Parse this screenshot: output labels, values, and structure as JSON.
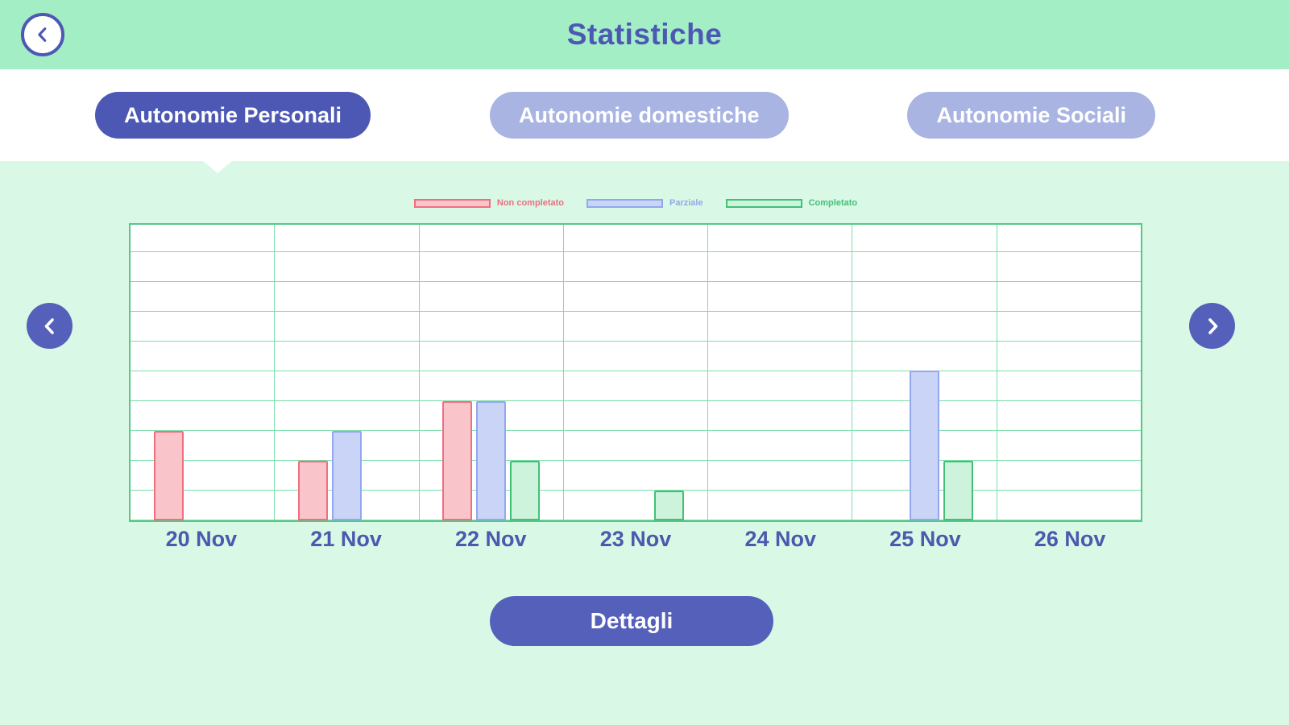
{
  "header": {
    "title": "Statistiche",
    "back_icon": "chevron-left-icon"
  },
  "tabs": [
    {
      "label": "Autonomie Personali",
      "active": true
    },
    {
      "label": "Autonomie domestiche",
      "active": false
    },
    {
      "label": "Autonomie Sociali",
      "active": false
    }
  ],
  "chart_data": {
    "type": "bar",
    "title": "",
    "xlabel": "",
    "ylabel": "",
    "categories": [
      "20 Nov",
      "21 Nov",
      "22 Nov",
      "23 Nov",
      "24 Nov",
      "25 Nov",
      "26 Nov"
    ],
    "series": [
      {
        "name": "Non completato",
        "fill": "#f9c4ca",
        "border": "#ef6f80",
        "values": [
          3,
          2,
          4,
          0,
          0,
          0,
          0
        ]
      },
      {
        "name": "Parziale",
        "fill": "#c9d4f7",
        "border": "#92a8ee",
        "values": [
          0,
          3,
          4,
          0,
          0,
          5,
          0
        ]
      },
      {
        "name": "Completato",
        "fill": "#cdf3dc",
        "border": "#43c078",
        "values": [
          0,
          0,
          2,
          1,
          0,
          2,
          0
        ]
      }
    ],
    "ylim": [
      0,
      10
    ],
    "grid": true,
    "legend_position": "top"
  },
  "nav": {
    "prev_icon": "chevron-left-icon",
    "next_icon": "chevron-right-icon"
  },
  "footer": {
    "details_label": "Dettagli"
  },
  "colors": {
    "header_bg": "#a3eec5",
    "screen_bg": "#d9f8e5",
    "accent_indigo": "#4d58b4",
    "pill_inactive": "#a9b4e3",
    "button_indigo": "#5560bb",
    "chart_border": "#54c887",
    "chart_grid": "#7adfa8",
    "axis_label": "#4b59ae"
  }
}
